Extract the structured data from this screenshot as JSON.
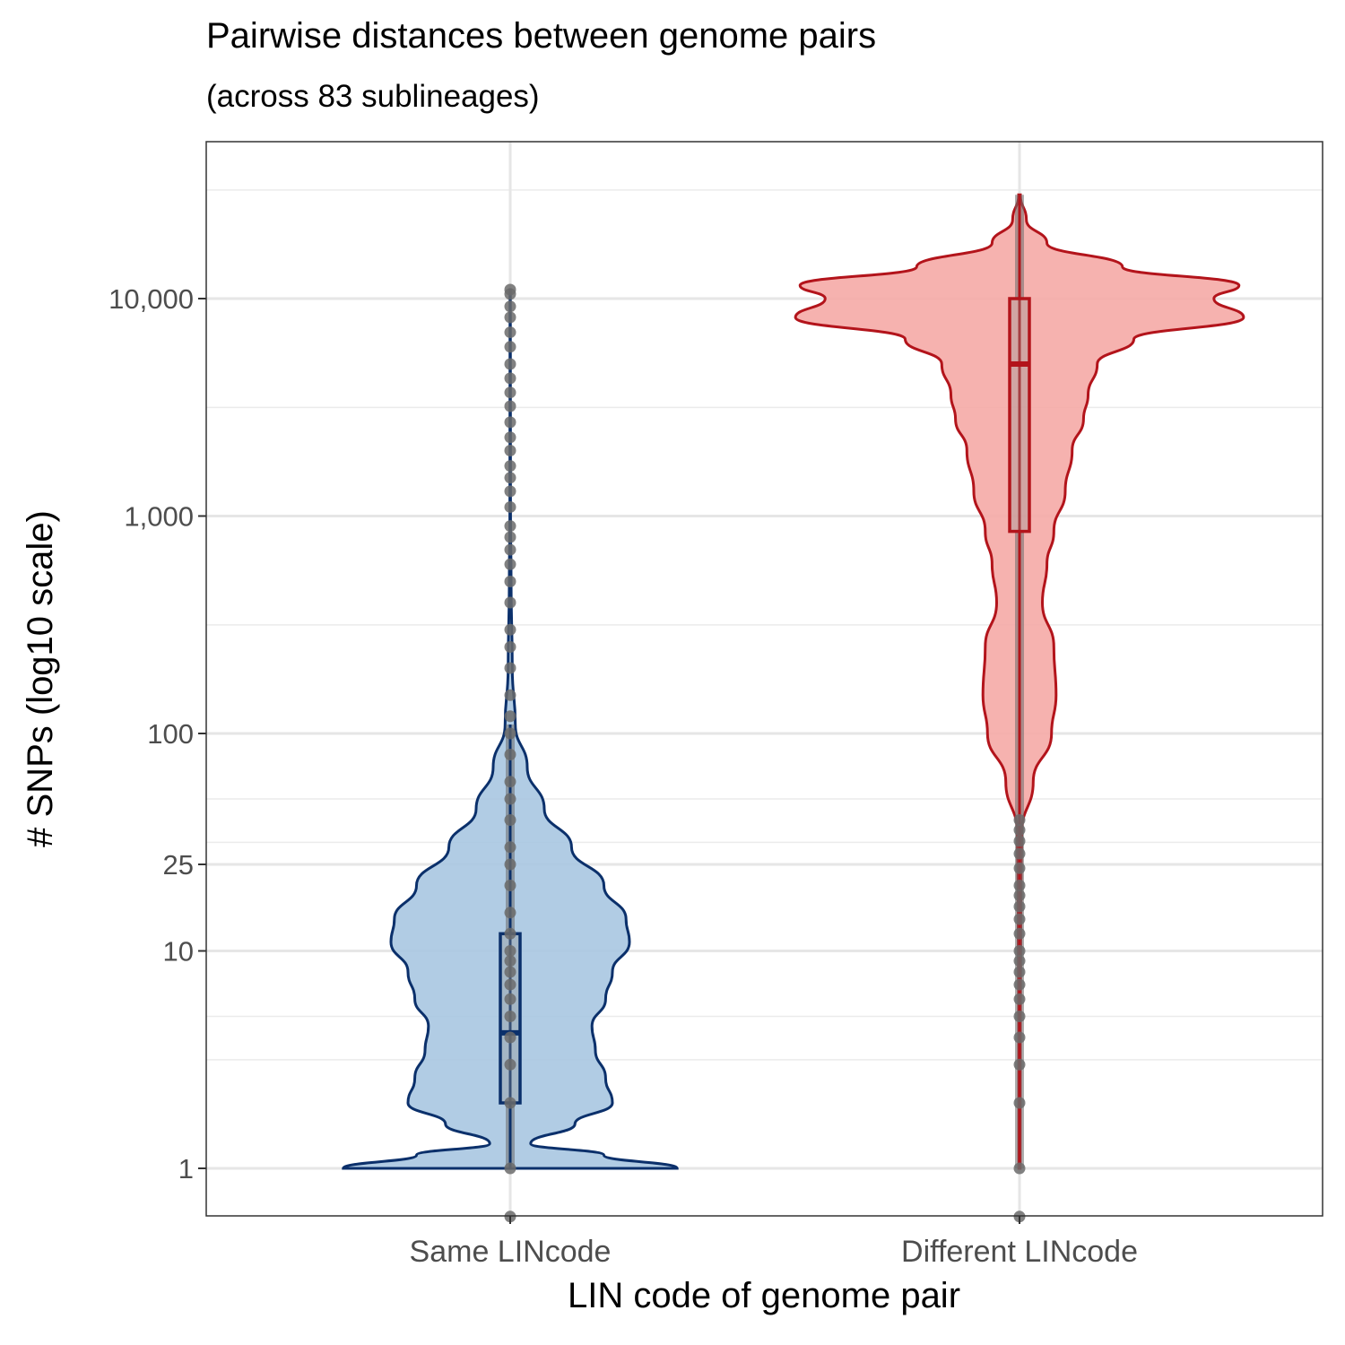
{
  "chart_data": {
    "type": "violin",
    "title": "Pairwise distances between genome pairs",
    "subtitle": "(across 83 sublineages)",
    "xlabel": "LIN code of genome pair",
    "ylabel": "# SNPs (log10 scale)",
    "y_scale": "log10",
    "ylim": [
      0.6,
      50000
    ],
    "y_ticks": [
      1,
      10,
      25,
      100,
      1000,
      10000
    ],
    "y_tick_labels": [
      "1",
      "10",
      "25",
      "100",
      "1,000",
      "10,000"
    ],
    "grid": true,
    "categories": [
      "Same LINcode",
      "Different LINcode"
    ],
    "colors": {
      "same_fill": "#a8c6e1",
      "same_line": "#0b306b",
      "diff_fill": "#f5aaa6",
      "diff_line": "#b3141b",
      "points": "#6b6b6b"
    },
    "series": [
      {
        "category": "Same LINcode",
        "box": {
          "min": 1,
          "q1": 2,
          "median": 4.2,
          "q3": 12,
          "max": 110
        },
        "outliers": [
          0.6,
          1,
          2,
          3,
          4,
          5,
          6,
          7,
          8,
          9,
          10,
          12,
          15,
          20,
          25,
          30,
          40,
          50,
          60,
          80,
          100,
          120,
          150,
          200,
          250,
          300,
          400,
          500,
          600,
          700,
          800,
          900,
          1100,
          1300,
          1500,
          1700,
          2000,
          2300,
          2700,
          3200,
          3700,
          4300,
          5000,
          6000,
          7000,
          8200,
          9200,
          10500,
          11000
        ],
        "violin_profile": [
          [
            1,
            0.98
          ],
          [
            1.15,
            0.55
          ],
          [
            1.3,
            0.12
          ],
          [
            1.6,
            0.38
          ],
          [
            2,
            0.6
          ],
          [
            2.6,
            0.56
          ],
          [
            3.5,
            0.5
          ],
          [
            4.5,
            0.48
          ],
          [
            6,
            0.56
          ],
          [
            8,
            0.6
          ],
          [
            11,
            0.7
          ],
          [
            14,
            0.68
          ],
          [
            20,
            0.55
          ],
          [
            30,
            0.36
          ],
          [
            45,
            0.2
          ],
          [
            70,
            0.1
          ],
          [
            110,
            0.03
          ],
          [
            200,
            0.012
          ],
          [
            500,
            0.005
          ],
          [
            1000,
            0.002
          ],
          [
            11000,
            0.001
          ]
        ]
      },
      {
        "category": "Different LINcode",
        "box": {
          "min": 1,
          "q1": 850,
          "median": 5000,
          "q3": 10000,
          "max": 30000
        },
        "outliers": [
          0.6,
          1,
          2,
          3,
          4,
          5,
          6,
          7,
          8,
          9,
          10,
          12,
          14,
          16,
          18,
          20,
          24,
          28,
          32,
          36,
          40
        ],
        "violin_profile": [
          [
            1,
            0.003
          ],
          [
            5,
            0.004
          ],
          [
            20,
            0.007
          ],
          [
            35,
            0.01
          ],
          [
            60,
            0.06
          ],
          [
            100,
            0.14
          ],
          [
            150,
            0.16
          ],
          [
            250,
            0.15
          ],
          [
            400,
            0.1
          ],
          [
            600,
            0.12
          ],
          [
            850,
            0.15
          ],
          [
            1300,
            0.2
          ],
          [
            2000,
            0.23
          ],
          [
            2800,
            0.28
          ],
          [
            3600,
            0.3
          ],
          [
            5000,
            0.34
          ],
          [
            6500,
            0.5
          ],
          [
            8200,
            0.98
          ],
          [
            10000,
            0.85
          ],
          [
            11500,
            0.96
          ],
          [
            14000,
            0.45
          ],
          [
            18000,
            0.12
          ],
          [
            23000,
            0.03
          ],
          [
            30000,
            0.004
          ]
        ]
      }
    ]
  }
}
